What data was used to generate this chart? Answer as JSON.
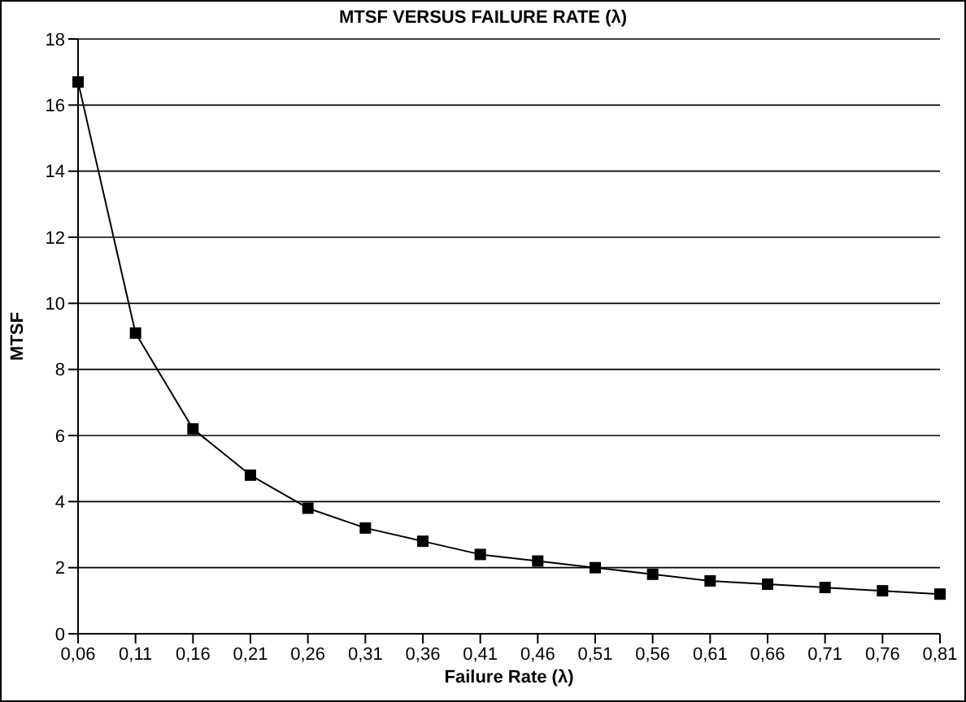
{
  "chart_data": {
    "type": "line",
    "title": "MTSF VERSUS FAILURE RATE (λ)",
    "xlabel": "Failure Rate (λ)",
    "ylabel": "MTSF",
    "categories": [
      "0,06",
      "0,11",
      "0,16",
      "0,21",
      "0,26",
      "0,31",
      "0,36",
      "0,41",
      "0,46",
      "0,51",
      "0,56",
      "0,61",
      "0,66",
      "0,71",
      "0,76",
      "0,81"
    ],
    "series": [
      {
        "color": "#000000",
        "values": [
          16.7,
          9.1,
          6.2,
          4.8,
          3.8,
          3.2,
          2.8,
          2.4,
          2.2,
          2.0,
          1.8,
          1.6,
          1.5,
          1.4,
          1.3,
          1.2
        ]
      }
    ],
    "ylim": [
      0,
      18
    ],
    "yticks": [
      0,
      2,
      4,
      6,
      8,
      10,
      12,
      14,
      16,
      18
    ],
    "grid": "y",
    "marker": "square",
    "line_style": "solid"
  }
}
